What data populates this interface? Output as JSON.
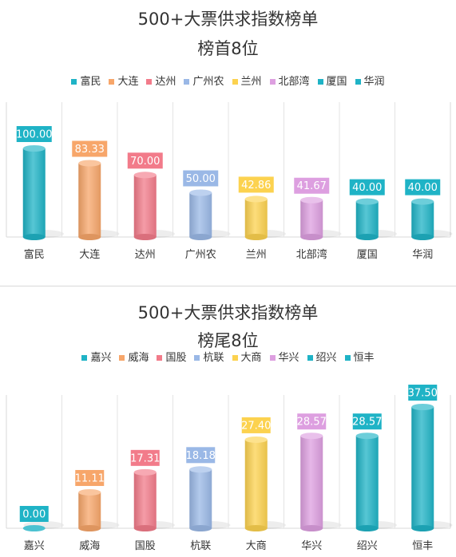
{
  "chart_data": [
    {
      "type": "bar",
      "title": "500+大票供求指数榜单",
      "subtitle": "榜首8位",
      "categories": [
        "富民",
        "大连",
        "达州",
        "广州农",
        "兰州",
        "北部湾",
        "厦国",
        "华润"
      ],
      "values": [
        100.0,
        83.33,
        70.0,
        50.0,
        42.86,
        41.67,
        40.0,
        40.0
      ],
      "data_labels": [
        "100.00",
        "83.33",
        "70.00",
        "50.00",
        "42.86",
        "41.67",
        "40.00",
        "40.00"
      ],
      "legend": [
        "富民",
        "大连",
        "达州",
        "广州农",
        "兰州",
        "北部湾",
        "厦国",
        "华润"
      ],
      "colors": [
        "#1fb3c6",
        "#f7a66a",
        "#f27b8a",
        "#9ab8e6",
        "#fcd24f",
        "#dd9fe0",
        "#1fb3c6",
        "#1fb3c6"
      ],
      "ylim": [
        0,
        100
      ],
      "grid": false,
      "legend_position": "top"
    },
    {
      "type": "bar",
      "title": "500+大票供求指数榜单",
      "subtitle": "榜尾8位",
      "categories": [
        "嘉兴",
        "威海",
        "国股",
        "杭联",
        "大商",
        "华兴",
        "绍兴",
        "恒丰"
      ],
      "values": [
        0.0,
        11.11,
        17.31,
        18.18,
        27.4,
        28.57,
        28.57,
        37.5
      ],
      "data_labels": [
        "0.00",
        "11.11",
        "17.31",
        "18.18",
        "27.40",
        "28.57",
        "28.57",
        "37.50"
      ],
      "legend": [
        "嘉兴",
        "威海",
        "国股",
        "杭联",
        "大商",
        "华兴",
        "绍兴",
        "恒丰"
      ],
      "colors": [
        "#1fb3c6",
        "#f7a66a",
        "#f27b8a",
        "#9ab8e6",
        "#fcd24f",
        "#dd9fe0",
        "#1fb3c6",
        "#1fb3c6"
      ],
      "ylim": [
        0,
        37.5
      ],
      "grid": false,
      "legend_position": "top"
    }
  ]
}
